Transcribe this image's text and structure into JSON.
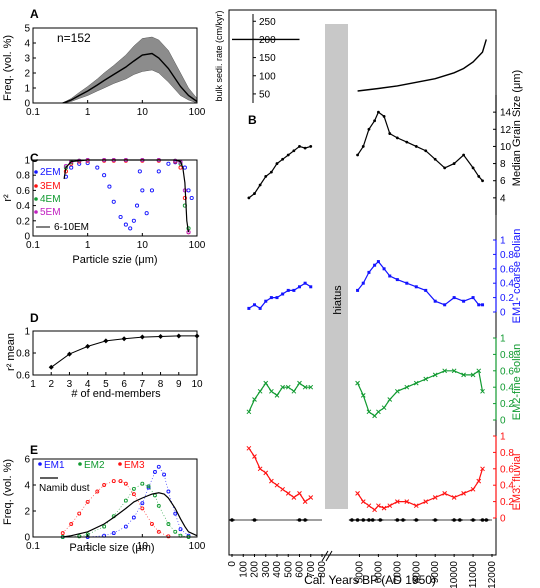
{
  "colors": {
    "black": "#000000",
    "grey": "#808080",
    "lightgrey": "#c8c8c8",
    "blue": "#1414ff",
    "green": "#109a30",
    "red": "#ff1010"
  },
  "panels": {
    "A": {
      "letter": "A",
      "annotation": "n=152",
      "ylabel": "Freq. (vol. %)"
    },
    "C": {
      "letter": "C",
      "ylabel": "r²",
      "xlabel": "Particle szie (μm)"
    },
    "D": {
      "letter": "D",
      "ylabel": "r² mean",
      "xlabel": "# of end-members"
    },
    "E": {
      "letter": "E",
      "ylabel": "Freq. (vol. %)",
      "xlabel": "Particle size (μm)",
      "namib_label": "Namib dust"
    },
    "B": {
      "letter": "B",
      "hiatus_label": "hiatus",
      "xlabel": "Cal. Years BP (AD 1950)",
      "top_ylabel": "bulk sedi. rate (cm/kyr)"
    }
  },
  "chart_data": [
    {
      "id": "A",
      "type": "line",
      "xscale": "log",
      "xlim": [
        0.1,
        100
      ],
      "ylim": [
        0,
        5
      ],
      "xticks": [
        "0.1",
        "1",
        "10",
        "100"
      ],
      "yticks": [
        "0",
        "1",
        "2",
        "3",
        "4",
        "5"
      ],
      "ylabel": "Freq. (vol. %)",
      "series": [
        {
          "x": [
            0.35,
            0.5,
            0.7,
            1,
            1.5,
            2,
            3,
            5,
            7,
            10,
            15,
            20,
            30,
            50,
            70,
            100
          ],
          "y": [
            0,
            0.2,
            0.5,
            0.8,
            1.2,
            1.5,
            1.9,
            2.4,
            2.8,
            3.2,
            3.3,
            3.0,
            2.3,
            1.1,
            0.5,
            0.1
          ]
        }
      ],
      "envelope_upper": [
        0,
        0.3,
        0.7,
        1.1,
        1.6,
        2.0,
        2.5,
        3.2,
        3.8,
        4.3,
        4.4,
        4.2,
        3.5,
        2.0,
        1.0,
        0.3
      ],
      "envelope_lower": [
        0,
        0.1,
        0.3,
        0.5,
        0.8,
        1.0,
        1.3,
        1.6,
        1.9,
        2.1,
        2.2,
        2.0,
        1.4,
        0.5,
        0.2,
        0
      ]
    },
    {
      "id": "C",
      "type": "scatter",
      "xscale": "log",
      "xlim": [
        0.1,
        100
      ],
      "ylim": [
        0,
        1
      ],
      "xticks": [
        "0.1",
        "1",
        "10",
        "100"
      ],
      "yticks": [
        "0",
        "0.2",
        "0.4",
        "0.6",
        "0.8",
        "1"
      ],
      "legend": [
        "2EM",
        "3EM",
        "4EM",
        "5EM",
        "6-10EM"
      ],
      "series": [
        {
          "name": "2EM",
          "color": "blue",
          "x": [
            0.4,
            0.5,
            0.7,
            1,
            1.5,
            2,
            2.5,
            3,
            4,
            5,
            6,
            7,
            8,
            9,
            10,
            12,
            15,
            20,
            30,
            40,
            50,
            60,
            70,
            80
          ],
          "y": [
            0.78,
            0.9,
            0.95,
            0.96,
            0.9,
            0.8,
            0.65,
            0.45,
            0.25,
            0.15,
            0.1,
            0.2,
            0.4,
            0.85,
            0.6,
            0.3,
            0.6,
            0.85,
            0.95,
            0.97,
            0.97,
            0.9,
            0.6,
            0.5
          ]
        },
        {
          "name": "3EM",
          "color": "red",
          "x": [
            0.4,
            0.5,
            0.7,
            1,
            2,
            3,
            5,
            10,
            20,
            40,
            50,
            60,
            70
          ],
          "y": [
            0.85,
            0.95,
            0.98,
            0.99,
            0.99,
            0.99,
            0.99,
            0.99,
            0.99,
            0.98,
            0.9,
            0.5,
            0.05
          ]
        },
        {
          "name": "4EM",
          "color": "green",
          "x": [
            0.4,
            0.5,
            0.7,
            1,
            2,
            3,
            5,
            10,
            20,
            40,
            50,
            60,
            70
          ],
          "y": [
            0.9,
            0.97,
            0.99,
            1,
            1,
            1,
            1,
            1,
            1,
            0.99,
            0.95,
            0.4,
            0.1
          ]
        },
        {
          "name": "5EM",
          "color": "#c020c0",
          "x": [
            0.4,
            0.5,
            0.7,
            1,
            2,
            3,
            5,
            10,
            20,
            40,
            50,
            60,
            70
          ],
          "y": [
            0.92,
            0.98,
            0.99,
            1,
            1,
            1,
            1,
            1,
            1,
            0.99,
            0.97,
            0.6,
            0.05
          ]
        },
        {
          "name": "6-10EM",
          "color": "black",
          "x": [
            0.37,
            0.4,
            0.5,
            0.7,
            1,
            2,
            3,
            5,
            10,
            20,
            40,
            50,
            55,
            60,
            65,
            70
          ],
          "y": [
            0.75,
            0.9,
            0.98,
            0.99,
            1,
            1,
            1,
            1,
            1,
            1,
            1,
            0.98,
            0.9,
            0.7,
            0.2,
            0.05
          ]
        }
      ]
    },
    {
      "id": "D",
      "type": "line",
      "xlim": [
        1,
        10
      ],
      "ylim": [
        0.6,
        1
      ],
      "xticks": [
        "1",
        "2",
        "3",
        "4",
        "5",
        "6",
        "7",
        "8",
        "9",
        "10"
      ],
      "yticks": [
        "0.6",
        "0.8",
        "1"
      ],
      "x": [
        2,
        3,
        4,
        5,
        6,
        7,
        8,
        9,
        10
      ],
      "y": [
        0.67,
        0.79,
        0.86,
        0.91,
        0.93,
        0.945,
        0.95,
        0.955,
        0.955
      ]
    },
    {
      "id": "E",
      "type": "line",
      "xscale": "log",
      "xlim": [
        0.1,
        100
      ],
      "ylim": [
        0,
        6
      ],
      "xticks": [
        "0.1",
        "1",
        "10",
        "100"
      ],
      "yticks": [
        "0",
        "2",
        "4",
        "6"
      ],
      "legend": [
        "EM1",
        "EM2",
        "EM3"
      ],
      "series": [
        {
          "name": "EM1",
          "color": "blue",
          "x": [
            0.35,
            1,
            2,
            3,
            5,
            7,
            10,
            13,
            17,
            20,
            25,
            30,
            40,
            50,
            70
          ],
          "y": [
            0,
            0,
            0.1,
            0.3,
            0.8,
            1.5,
            2.6,
            3.8,
            5.0,
            5.4,
            4.8,
            3.5,
            1.8,
            0.6,
            0.1
          ]
        },
        {
          "name": "EM2",
          "color": "green",
          "x": [
            0.35,
            0.7,
            1,
            2,
            3,
            5,
            7,
            10,
            13,
            17,
            20,
            30,
            40,
            50,
            70
          ],
          "y": [
            0,
            0.05,
            0.2,
            0.8,
            1.6,
            2.8,
            3.7,
            4.1,
            3.9,
            3.2,
            2.4,
            1.0,
            0.4,
            0.1,
            0
          ]
        },
        {
          "name": "EM3",
          "color": "red",
          "x": [
            0.35,
            0.5,
            0.7,
            1,
            1.5,
            2,
            3,
            4,
            5,
            7,
            10,
            15,
            20,
            30
          ],
          "y": [
            0.3,
            1.0,
            1.8,
            2.7,
            3.5,
            4.0,
            4.3,
            4.3,
            4.1,
            3.3,
            2.2,
            1.0,
            0.4,
            0.05
          ]
        },
        {
          "name": "Namib dust",
          "color": "black",
          "x": [
            0.35,
            0.5,
            1,
            2,
            3,
            5,
            7,
            10,
            15,
            20,
            25,
            30,
            40,
            50,
            60,
            70,
            100
          ],
          "y": [
            0,
            0.1,
            0.4,
            1.0,
            1.5,
            2.2,
            2.7,
            3.0,
            3.3,
            3.4,
            3.3,
            3.0,
            2.2,
            1.4,
            0.8,
            0.4,
            0.1
          ]
        }
      ]
    },
    {
      "id": "B",
      "type": "line",
      "x_axis": {
        "label": "Cal. Years BP (AD 1950)",
        "break": true,
        "left": {
          "range": [
            0,
            800
          ],
          "ticks": [
            "0",
            "100",
            "200",
            "300",
            "400",
            "500",
            "600",
            "700",
            "800"
          ]
        },
        "right": {
          "range": [
            4500,
            12000
          ],
          "ticks": [
            "5000",
            "6000",
            "7000",
            "8000",
            "9000",
            "10000",
            "11000",
            "12000"
          ]
        }
      },
      "hiatus": {
        "from": 800,
        "to": 4800,
        "label": "hiatus"
      },
      "age_control": [
        0,
        200,
        600,
        650,
        4600,
        4900,
        5200,
        5500,
        5700,
        6100,
        7000,
        7300,
        8000,
        9000,
        10000,
        10300,
        11000,
        11500,
        11700
      ],
      "sedimentation_rate": {
        "ylabel": "bulk sedi. rate (cm/kyr)",
        "yticks": [
          "50",
          "100",
          "150",
          "200",
          "250"
        ],
        "ylim": [
          25,
          270
        ],
        "x": [
          0,
          600
        ],
        "y": [
          200,
          200
        ],
        "x2": [
          4900,
          6000,
          7000,
          8000,
          9000,
          10000,
          10500,
          11000,
          11500,
          11700
        ],
        "y2": [
          58,
          65,
          72,
          82,
          92,
          108,
          120,
          138,
          165,
          200
        ]
      },
      "median_grain": {
        "ylabel": "Median Grain Size (μm)",
        "yticks": [
          "4",
          "6",
          "8",
          "10",
          "12",
          "14"
        ],
        "ylim": [
          2,
          16
        ],
        "x": [
          150,
          200,
          250,
          300,
          350,
          400,
          450,
          500,
          550,
          600,
          650,
          700,
          4900,
          5200,
          5500,
          5800,
          6000,
          6300,
          6600,
          7000,
          7500,
          8000,
          8500,
          9000,
          9500,
          10000,
          10500,
          11000,
          11300,
          11500
        ],
        "y": [
          4,
          4.5,
          5.5,
          6.5,
          7,
          8,
          8.5,
          9,
          9.5,
          10,
          9.8,
          10,
          9,
          10,
          12,
          13,
          14,
          13.5,
          11.5,
          11,
          10.5,
          10,
          9.5,
          8.5,
          7.5,
          8,
          9,
          7.5,
          6.5,
          6
        ]
      },
      "em1": {
        "ylabel": "EM1- coarse eolian",
        "yticks": [
          "0",
          "0.2",
          "0.4",
          "0.6",
          "0.8",
          "1"
        ],
        "ylim": [
          0,
          1
        ],
        "x": [
          150,
          200,
          250,
          300,
          350,
          400,
          450,
          500,
          550,
          600,
          650,
          700,
          4900,
          5200,
          5500,
          5800,
          6000,
          6300,
          6600,
          7000,
          7500,
          8000,
          8500,
          9000,
          9500,
          10000,
          10500,
          11000,
          11300,
          11500
        ],
        "y": [
          0.05,
          0.1,
          0.05,
          0.15,
          0.2,
          0.2,
          0.25,
          0.3,
          0.3,
          0.35,
          0.4,
          0.35,
          0.3,
          0.4,
          0.55,
          0.65,
          0.7,
          0.6,
          0.5,
          0.45,
          0.4,
          0.35,
          0.3,
          0.15,
          0.1,
          0.2,
          0.15,
          0.2,
          0.1,
          0.1
        ]
      },
      "em2": {
        "ylabel": "EM2-fine eolian",
        "yticks": [
          "0",
          "0.2",
          "0.4",
          "0.6",
          "0.8",
          "1"
        ],
        "ylim": [
          0,
          1
        ],
        "x": [
          150,
          200,
          250,
          300,
          350,
          400,
          450,
          500,
          550,
          600,
          650,
          700,
          4900,
          5200,
          5500,
          5800,
          6000,
          6300,
          6600,
          7000,
          7500,
          8000,
          8500,
          9000,
          9500,
          10000,
          10500,
          11000,
          11300,
          11500
        ],
        "y": [
          0.1,
          0.25,
          0.35,
          0.45,
          0.35,
          0.3,
          0.4,
          0.4,
          0.35,
          0.45,
          0.4,
          0.4,
          0.45,
          0.3,
          0.1,
          0.05,
          0.1,
          0.15,
          0.25,
          0.35,
          0.4,
          0.45,
          0.5,
          0.55,
          0.6,
          0.6,
          0.55,
          0.55,
          0.6,
          0.35
        ]
      },
      "em3": {
        "ylabel": "EM3: fluvial",
        "yticks": [
          "0",
          "0.2",
          "0.4",
          "0.6",
          "0.8",
          "1"
        ],
        "ylim": [
          0,
          1
        ],
        "x": [
          150,
          200,
          250,
          300,
          350,
          400,
          450,
          500,
          550,
          600,
          650,
          700,
          4900,
          5200,
          5500,
          5800,
          6000,
          6300,
          6600,
          7000,
          7500,
          8000,
          8500,
          9000,
          9500,
          10000,
          10500,
          11000,
          11300,
          11500
        ],
        "y": [
          0.85,
          0.75,
          0.6,
          0.55,
          0.45,
          0.4,
          0.35,
          0.3,
          0.25,
          0.3,
          0.2,
          0.25,
          0.3,
          0.2,
          0.15,
          0.1,
          0.15,
          0.12,
          0.15,
          0.2,
          0.2,
          0.15,
          0.2,
          0.25,
          0.3,
          0.25,
          0.3,
          0.35,
          0.45,
          0.6
        ]
      }
    }
  ]
}
